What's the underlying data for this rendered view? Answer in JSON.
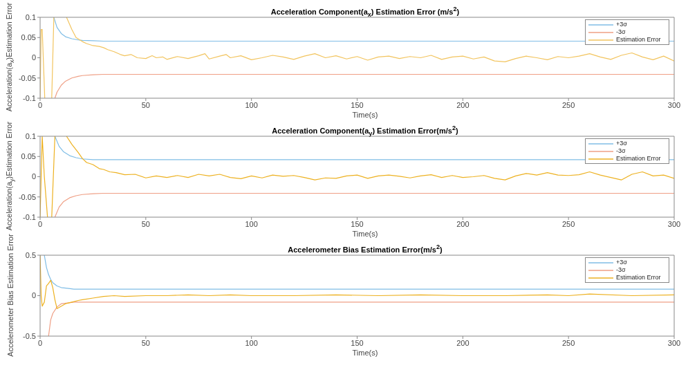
{
  "chart_data": [
    {
      "type": "line",
      "title": "Acceleration Component(a$_{x}$) Estimation Error (m/s$^{2}$)",
      "xlabel": "Time(s)",
      "ylabel": "Acceleration(a$_{x}$)Estimation Error",
      "xlim": [
        0,
        300
      ],
      "xticks": [
        0,
        50,
        100,
        150,
        200,
        250,
        300
      ],
      "ylim": [
        -0.1,
        0.1
      ],
      "yticks": [
        -0.1,
        -0.05,
        0,
        0.05,
        0.1
      ],
      "legend": "top right",
      "series": [
        {
          "name": "+3σ",
          "color": "#7fbde6",
          "x": [
            6.5,
            8,
            10,
            12,
            15,
            18,
            20,
            25,
            30,
            40,
            300
          ],
          "values": [
            0.1,
            0.075,
            0.06,
            0.052,
            0.047,
            0.044,
            0.043,
            0.042,
            0.041,
            0.041,
            0.041
          ]
        },
        {
          "name": "-3σ",
          "color": "#ef9f85",
          "x": [
            7,
            8,
            10,
            12,
            15,
            18,
            20,
            25,
            30,
            40,
            300
          ],
          "values": [
            -0.1,
            -0.085,
            -0.068,
            -0.058,
            -0.05,
            -0.046,
            -0.044,
            -0.042,
            -0.041,
            -0.041,
            -0.041
          ]
        },
        {
          "name": "Estimation Error",
          "color": "#f2c45e",
          "x": [
            0,
            0.5,
            1,
            1.5,
            2.2,
            3,
            5.5,
            6.5,
            8,
            12.5,
            15,
            17,
            20,
            22,
            25,
            28,
            30,
            32,
            35,
            38,
            40,
            43,
            46,
            50,
            53,
            55,
            58,
            60,
            65,
            70,
            75,
            78,
            80,
            85,
            88,
            90,
            95,
            100,
            105,
            110,
            115,
            120,
            125,
            130,
            135,
            140,
            145,
            150,
            155,
            160,
            165,
            170,
            175,
            180,
            185,
            190,
            195,
            200,
            205,
            210,
            215,
            220,
            225,
            230,
            235,
            240,
            245,
            250,
            255,
            260,
            265,
            270,
            275,
            280,
            285,
            290,
            295,
            300
          ],
          "values": [
            -0.1,
            0.07,
            0.07,
            0.0,
            -0.1,
            null,
            -0.1,
            0.1,
            null,
            0.1,
            0.07,
            0.05,
            0.04,
            0.035,
            0.03,
            0.028,
            0.025,
            0.02,
            0.015,
            0.008,
            0.005,
            0.008,
            0.0,
            -0.002,
            0.005,
            0.0,
            0.002,
            -0.004,
            0.003,
            -0.002,
            0.005,
            0.01,
            -0.003,
            0.004,
            0.008,
            0.0,
            0.005,
            -0.005,
            0.0,
            0.006,
            0.002,
            -0.004,
            0.004,
            0.01,
            0.0,
            0.005,
            -0.003,
            0.003,
            -0.006,
            0.002,
            0.004,
            -0.002,
            0.003,
            0.0,
            0.006,
            -0.004,
            0.002,
            0.004,
            -0.003,
            0.002,
            -0.008,
            -0.01,
            -0.002,
            0.004,
            0.0,
            -0.005,
            0.003,
            0.0,
            0.004,
            0.01,
            0.002,
            -0.004,
            0.006,
            0.012,
            0.002,
            -0.005,
            0.004,
            -0.008
          ]
        }
      ]
    },
    {
      "type": "line",
      "title": "Acceleration Component(a$_{y}$) Estimation Error(m/s$^{2}$)",
      "xlabel": "Time(s)",
      "ylabel": "Acceleration(a$_{y}$)Estimation Error",
      "xlim": [
        0,
        300
      ],
      "xticks": [
        0,
        50,
        100,
        150,
        200,
        250,
        300
      ],
      "ylim": [
        -0.1,
        0.1
      ],
      "yticks": [
        -0.1,
        -0.05,
        0,
        0.05,
        0.1
      ],
      "legend": "top right",
      "series": [
        {
          "name": "+3σ",
          "color": "#7fbde6",
          "x": [
            7,
            9,
            11,
            14,
            17,
            20,
            25,
            30,
            40,
            300
          ],
          "values": [
            0.1,
            0.075,
            0.062,
            0.052,
            0.047,
            0.044,
            0.042,
            0.042,
            0.042,
            0.042
          ]
        },
        {
          "name": "-3σ",
          "color": "#ef9f85",
          "x": [
            7,
            9,
            11,
            14,
            17,
            20,
            25,
            30,
            40,
            300
          ],
          "values": [
            -0.1,
            -0.075,
            -0.062,
            -0.052,
            -0.047,
            -0.044,
            -0.042,
            -0.041,
            -0.041,
            -0.041
          ]
        },
        {
          "name": "Estimation Error",
          "color": "#edb120",
          "x": [
            0,
            1,
            2,
            3.5,
            4.5,
            5.5,
            7,
            9,
            12.5,
            15,
            18,
            20,
            22,
            25,
            28,
            30,
            33,
            36,
            40,
            45,
            50,
            55,
            60,
            65,
            70,
            75,
            80,
            85,
            90,
            95,
            100,
            105,
            110,
            115,
            120,
            125,
            130,
            135,
            140,
            145,
            150,
            155,
            160,
            165,
            170,
            175,
            180,
            185,
            190,
            195,
            200,
            205,
            210,
            215,
            220,
            225,
            230,
            235,
            240,
            245,
            250,
            255,
            260,
            265,
            270,
            275,
            280,
            285,
            290,
            295,
            300
          ],
          "values": [
            -0.1,
            0.1,
            0.0,
            -0.1,
            null,
            -0.1,
            0.1,
            null,
            0.1,
            0.08,
            0.06,
            0.045,
            0.035,
            0.03,
            0.02,
            0.018,
            0.012,
            0.01,
            0.005,
            0.006,
            -0.003,
            0.002,
            -0.002,
            0.003,
            -0.002,
            0.006,
            0.002,
            0.006,
            -0.002,
            -0.005,
            0.002,
            -0.003,
            0.004,
            0.001,
            0.003,
            -0.002,
            -0.008,
            -0.003,
            -0.004,
            0.002,
            0.004,
            -0.004,
            0.002,
            0.004,
            0.001,
            -0.003,
            0.002,
            0.005,
            -0.002,
            0.003,
            -0.002,
            0.0,
            0.003,
            -0.004,
            -0.008,
            0.002,
            0.008,
            0.004,
            0.01,
            0.004,
            0.003,
            0.005,
            0.012,
            0.004,
            -0.002,
            -0.008,
            0.006,
            0.012,
            0.002,
            0.004,
            -0.004
          ]
        }
      ]
    },
    {
      "type": "line",
      "title": "Accelerometer Bias Estimation Error(m/s$^{2}$)",
      "xlabel": "Time(s)",
      "ylabel": "Accelerometer Bias Estimation Error",
      "xlim": [
        0,
        300
      ],
      "xticks": [
        0,
        50,
        100,
        150,
        200,
        250,
        300
      ],
      "ylim": [
        -0.5,
        0.5
      ],
      "yticks": [
        -0.5,
        0,
        0.5
      ],
      "legend": "top right",
      "series": [
        {
          "name": "+3σ",
          "color": "#7fbde6",
          "x": [
            2,
            3,
            4,
            5,
            6,
            8,
            10,
            13,
            16,
            20,
            25,
            300
          ],
          "values": [
            0.5,
            0.35,
            0.26,
            0.2,
            0.16,
            0.12,
            0.1,
            0.09,
            0.08,
            0.08,
            0.08,
            0.08
          ]
        },
        {
          "name": "-3σ",
          "color": "#ef9f85",
          "x": [
            4,
            5,
            6,
            8,
            10,
            13,
            16,
            20,
            25,
            300
          ],
          "values": [
            -0.5,
            -0.3,
            -0.22,
            -0.14,
            -0.1,
            -0.09,
            -0.08,
            -0.08,
            -0.08,
            -0.08
          ]
        },
        {
          "name": "Estimation Error",
          "color": "#edb120",
          "x": [
            0,
            0.5,
            1,
            2,
            3,
            4,
            5,
            6,
            7,
            8,
            10,
            12,
            15,
            18,
            20,
            25,
            30,
            35,
            40,
            50,
            60,
            70,
            80,
            90,
            100,
            120,
            140,
            160,
            180,
            200,
            220,
            240,
            250,
            260,
            280,
            300
          ],
          "values": [
            0.5,
            0.0,
            -0.13,
            -0.08,
            0.12,
            0.15,
            0.19,
            0.1,
            -0.05,
            -0.16,
            -0.13,
            -0.1,
            -0.08,
            -0.06,
            -0.05,
            -0.03,
            -0.01,
            0.0,
            -0.01,
            0.0,
            0.0,
            0.01,
            0.0,
            0.01,
            0.0,
            0.0,
            0.01,
            0.0,
            0.01,
            0.0,
            0.0,
            0.01,
            0.0,
            0.02,
            0.0,
            0.01
          ]
        }
      ]
    }
  ]
}
